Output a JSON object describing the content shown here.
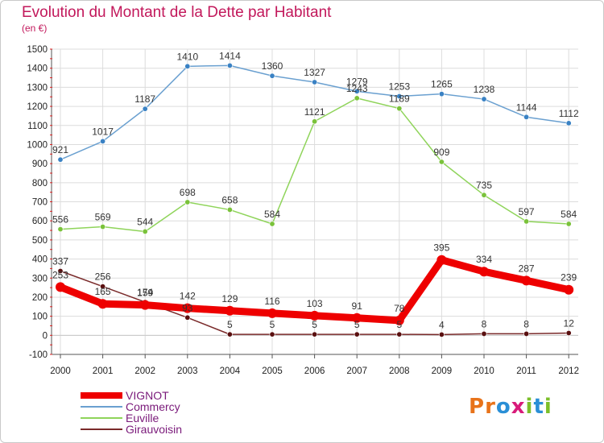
{
  "title": "Evolution du Montant de la Dette par Habitant",
  "subtitle": "(en €)",
  "logo": {
    "text": "Proxiti",
    "letters": [
      {
        "ch": "P",
        "color": "#e8731a"
      },
      {
        "ch": "r",
        "color": "#e8731a"
      },
      {
        "ch": "o",
        "color": "#2a8fd6"
      },
      {
        "ch": "x",
        "color": "#d81b7a"
      },
      {
        "ch": "i",
        "color": "#7cbf2a"
      },
      {
        "ch": "t",
        "color": "#2a8fd6"
      },
      {
        "ch": "i",
        "color": "#7cbf2a"
      }
    ]
  },
  "chart_data": {
    "type": "line",
    "x": [
      "2000",
      "2001",
      "2002",
      "2003",
      "2004",
      "2005",
      "2006",
      "2007",
      "2008",
      "2009",
      "2010",
      "2011",
      "2012"
    ],
    "ylim": [
      -100,
      1500
    ],
    "yticks": [
      -100,
      0,
      100,
      200,
      300,
      400,
      500,
      600,
      700,
      800,
      900,
      1000,
      1100,
      1200,
      1300,
      1400,
      1500
    ],
    "grid": true,
    "legend_position": "bottom-left",
    "series": [
      {
        "name": "VIGNOT",
        "color": "#ee0000",
        "values": [
          253,
          165,
          159,
          142,
          129,
          116,
          103,
          91,
          78,
          395,
          334,
          287,
          239
        ]
      },
      {
        "name": "Commercy",
        "color": "#6aa0d0",
        "values": [
          921,
          1017,
          1187,
          1410,
          1414,
          1360,
          1327,
          1279,
          1253,
          1265,
          1238,
          1144,
          1112
        ]
      },
      {
        "name": "Euville",
        "color": "#8fd45a",
        "values": [
          556,
          569,
          544,
          698,
          658,
          584,
          1121,
          1243,
          1189,
          909,
          735,
          597,
          584
        ]
      },
      {
        "name": "Girauvoisin",
        "color": "#7a2a2a",
        "values": [
          337,
          256,
          174,
          93,
          5,
          5,
          5,
          5,
          5,
          4,
          8,
          8,
          12
        ]
      }
    ]
  }
}
